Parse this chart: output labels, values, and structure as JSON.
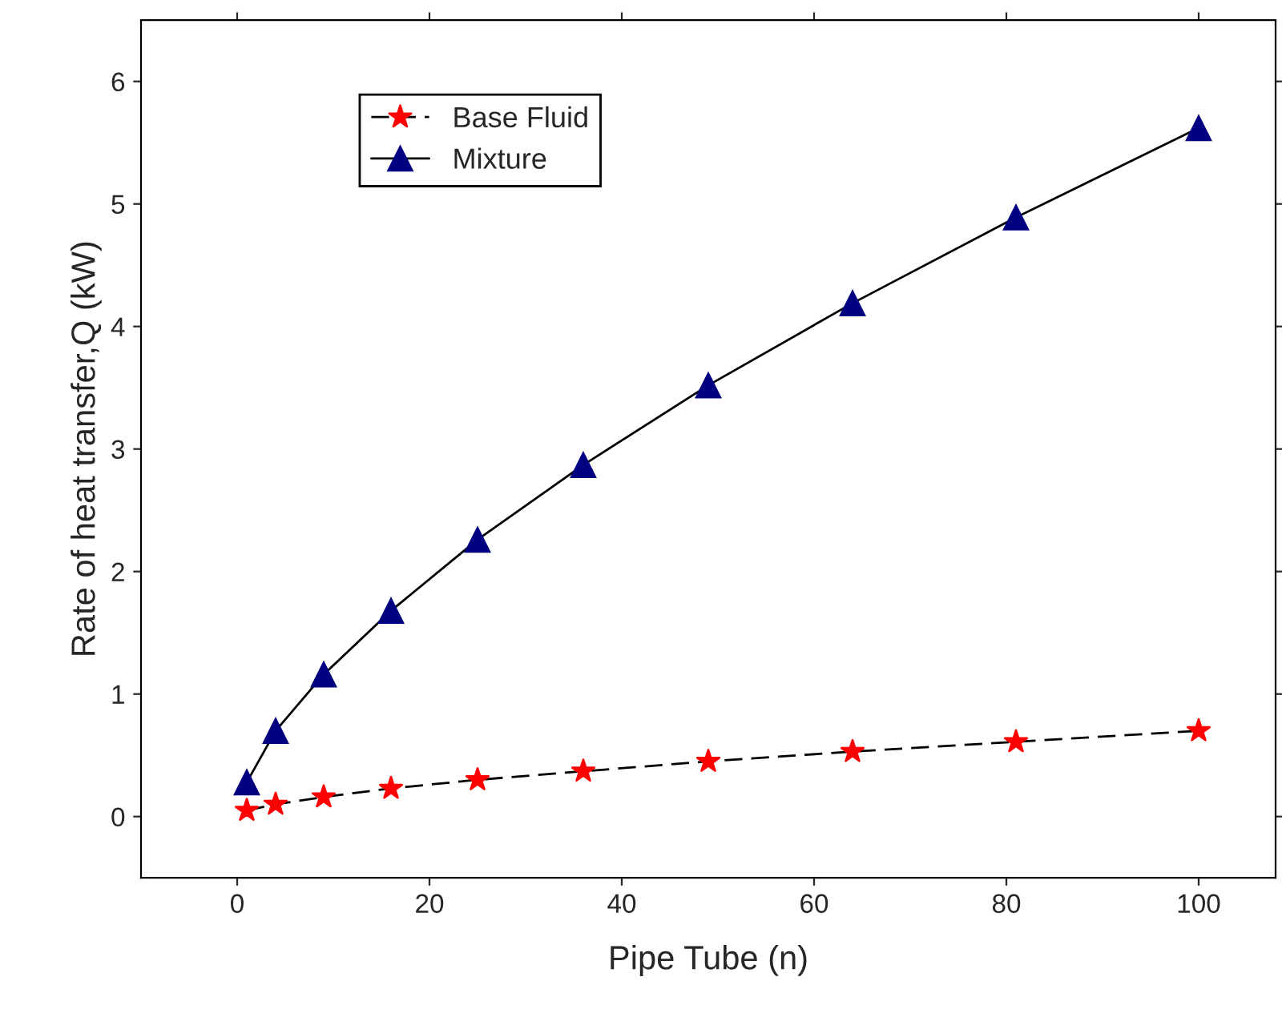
{
  "chart_data": {
    "type": "line",
    "xlabel": "Pipe Tube (n)",
    "ylabel": "Rate of heat transfer,Q (kW)",
    "x": [
      1,
      4,
      9,
      16,
      25,
      36,
      49,
      64,
      81,
      100
    ],
    "series": [
      {
        "name": "Base Fluid",
        "color": "#ff0000",
        "marker": "star",
        "line_style": "dashed",
        "values": [
          0.05,
          0.1,
          0.16,
          0.23,
          0.3,
          0.37,
          0.45,
          0.53,
          0.61,
          0.7
        ]
      },
      {
        "name": "Mixture",
        "color": "#000080",
        "marker": "triangle",
        "line_style": "solid",
        "values": [
          0.28,
          0.7,
          1.16,
          1.68,
          2.26,
          2.87,
          3.52,
          4.19,
          4.89,
          5.62
        ]
      }
    ],
    "xlim": [
      -10,
      108
    ],
    "ylim": [
      -0.5,
      6.5
    ],
    "xticks": [
      0,
      20,
      40,
      60,
      80,
      100
    ],
    "yticks": [
      0,
      1,
      2,
      3,
      4,
      5,
      6
    ],
    "grid": false,
    "legend": "top left"
  }
}
